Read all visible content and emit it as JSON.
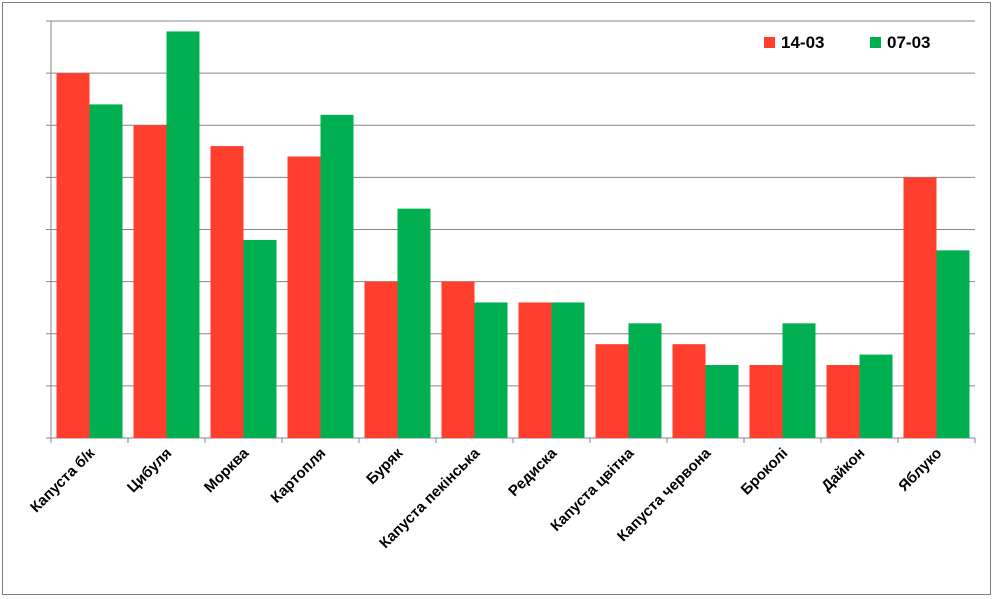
{
  "chart_data": {
    "type": "bar",
    "categories": [
      "Капуста б/к",
      "Цибуля",
      "Морква",
      "Картопля",
      "Буряк",
      "Капуста пекінська",
      "Редиска",
      "Капуста цвітна",
      "Капуста червона",
      "Броколі",
      "Дайкон",
      "Яблуко"
    ],
    "series": [
      {
        "name": "14-03",
        "color": "#ff3f2e",
        "values": [
          7.0,
          6.0,
          5.6,
          5.4,
          3.0,
          3.0,
          2.6,
          1.8,
          1.8,
          1.4,
          1.4,
          5.0
        ]
      },
      {
        "name": "07-03",
        "color": "#00b050",
        "values": [
          6.4,
          7.8,
          3.8,
          6.2,
          4.4,
          2.6,
          2.6,
          2.2,
          1.4,
          2.2,
          1.6,
          3.6
        ]
      }
    ],
    "title": "",
    "xlabel": "",
    "ylabel": "",
    "ylim": [
      0,
      8
    ],
    "y_tick_labels_shown": false,
    "grid": true,
    "legend_position": "top-right"
  }
}
